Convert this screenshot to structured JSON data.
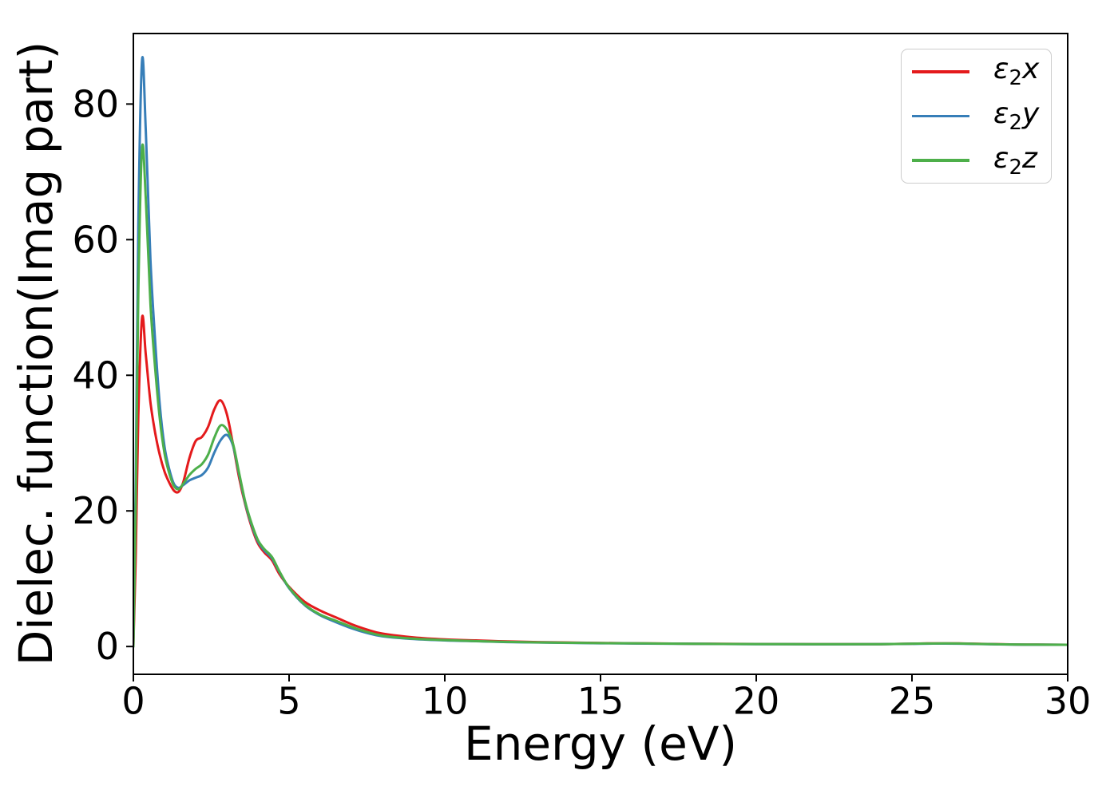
{
  "figure": {
    "xlabel": "Energy (eV)",
    "ylabel": "Dielec. function(Imag part)"
  },
  "legend": {
    "position": "upper right",
    "items": [
      {
        "name": "e2x",
        "symbol": "ε",
        "sub": "2",
        "var": "x",
        "color": "#e41a1c"
      },
      {
        "name": "e2y",
        "symbol": "ε",
        "sub": "2",
        "var": "y",
        "color": "#377eb8"
      },
      {
        "name": "e2z",
        "symbol": "ε",
        "sub": "2",
        "var": "z",
        "color": "#4daf4a"
      }
    ]
  },
  "chart_data": {
    "type": "line",
    "title": "",
    "xlabel": "Energy (eV)",
    "ylabel": "Dielec. function(Imag part)",
    "xlim": [
      0,
      30
    ],
    "ylim": [
      -4.1,
      90.4
    ],
    "x_ticks": [
      0,
      5,
      10,
      15,
      20,
      25,
      30
    ],
    "y_ticks": [
      0,
      20,
      40,
      60,
      80
    ],
    "grid": false,
    "legend_position": "upper right",
    "x": [
      0,
      0.08,
      0.16,
      0.28,
      0.4,
      0.55,
      0.7,
      0.85,
      1.0,
      1.15,
      1.3,
      1.45,
      1.6,
      1.8,
      2.0,
      2.2,
      2.4,
      2.6,
      2.8,
      3.0,
      3.2,
      3.4,
      3.6,
      3.8,
      4.0,
      4.2,
      4.45,
      4.7,
      5.0,
      5.5,
      6.0,
      6.5,
      7.0,
      7.5,
      8.0,
      9.0,
      10,
      11,
      12,
      13.5,
      15,
      16.5,
      18,
      20,
      22,
      24,
      25.5,
      26.5,
      28,
      29,
      30
    ],
    "series": [
      {
        "name": "e2x",
        "label": "ε₂x",
        "color": "#e41a1c",
        "values": [
          0,
          14,
          34,
          48.5,
          43,
          36,
          31.5,
          28.2,
          25.8,
          24.2,
          23.0,
          22.8,
          24.2,
          27.8,
          30.3,
          30.9,
          32.4,
          35.0,
          36.3,
          34.3,
          29.8,
          24.8,
          20.8,
          17.6,
          15.2,
          13.9,
          12.7,
          10.6,
          8.8,
          6.6,
          5.3,
          4.3,
          3.3,
          2.5,
          1.9,
          1.35,
          1.05,
          0.9,
          0.75,
          0.62,
          0.52,
          0.46,
          0.41,
          0.37,
          0.34,
          0.35,
          0.45,
          0.45,
          0.32,
          0.28,
          0.25
        ]
      },
      {
        "name": "e2y",
        "label": "ε₂y",
        "color": "#377eb8",
        "values": [
          0,
          26,
          62,
          86.5,
          76,
          57,
          45,
          35.5,
          29.5,
          26.2,
          24.0,
          23.4,
          23.8,
          24.5,
          24.9,
          25.3,
          26.4,
          28.6,
          30.4,
          31.2,
          29.6,
          25.3,
          21.0,
          17.9,
          15.5,
          14.2,
          13.0,
          10.9,
          8.6,
          6.1,
          4.6,
          3.6,
          2.7,
          2.0,
          1.5,
          1.1,
          0.9,
          0.78,
          0.66,
          0.56,
          0.48,
          0.43,
          0.39,
          0.35,
          0.33,
          0.34,
          0.42,
          0.42,
          0.3,
          0.27,
          0.25
        ]
      },
      {
        "name": "e2z",
        "label": "ε₂z",
        "color": "#4daf4a",
        "values": [
          0,
          22,
          52,
          73.5,
          66,
          50.5,
          41,
          33.5,
          28.5,
          25.6,
          23.7,
          23.2,
          24.0,
          25.3,
          26.2,
          26.9,
          28.3,
          30.8,
          32.6,
          32.0,
          29.9,
          25.5,
          21.2,
          18.1,
          15.7,
          14.4,
          13.2,
          11.0,
          8.7,
          6.2,
          4.7,
          3.8,
          2.9,
          2.15,
          1.6,
          1.15,
          0.95,
          0.8,
          0.68,
          0.58,
          0.5,
          0.45,
          0.4,
          0.36,
          0.34,
          0.35,
          0.44,
          0.44,
          0.31,
          0.28,
          0.26
        ]
      }
    ]
  }
}
